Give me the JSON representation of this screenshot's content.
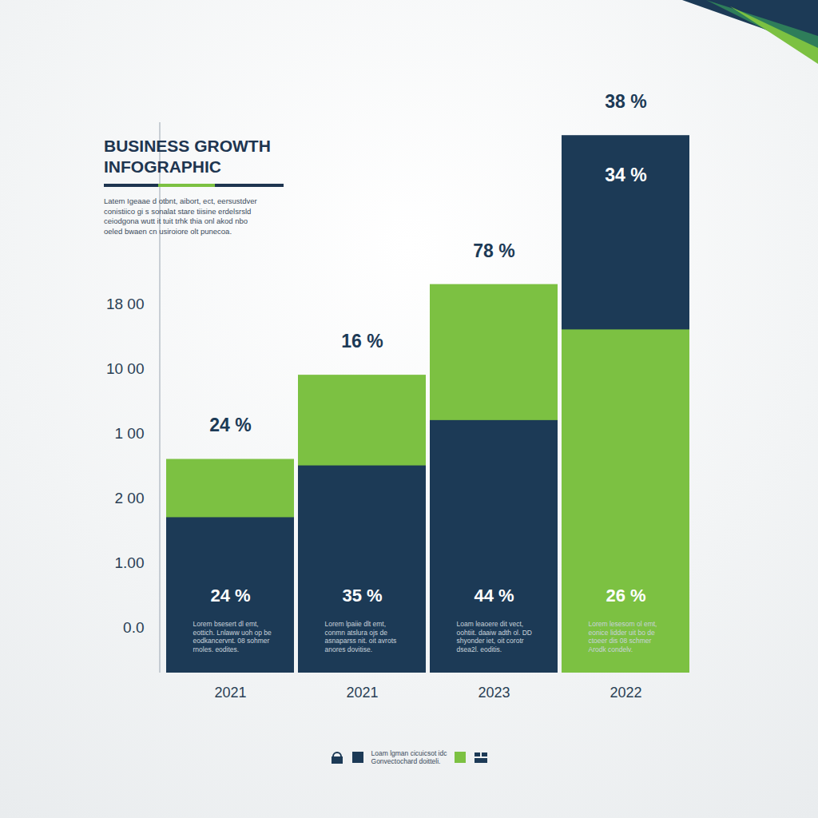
{
  "chart_data": {
    "type": "bar",
    "title": "BUSINESS GROWTH INFOGRAPHIC",
    "description": [
      "Latem Igeaae d otbnt, aibort, ect, eersustdver",
      "conistiico gi s sonalat stare tiisine erdelsrsld",
      "ceiodgona wutt it tuit trhk thia onl akod nbo",
      "oeled bwaen cn usiroiore olt punecoa."
    ],
    "categories": [
      "2021",
      "2021",
      "2023",
      "2022"
    ],
    "series": [
      {
        "color": "#1c3a56",
        "values": [
          1.7,
          2.5,
          3.2,
          7.6
        ]
      },
      {
        "color": "#7cc142",
        "values": [
          2.6,
          3.9,
          5.3,
          4.6
        ]
      }
    ],
    "ylim": [
      -0.7,
      7.8
    ],
    "yticks": [
      {
        "value": 0,
        "label": "0.0"
      },
      {
        "value": 1,
        "label": "1.00"
      },
      {
        "value": 2,
        "label": "2 00"
      },
      {
        "value": 3,
        "label": "1 00"
      },
      {
        "value": 4,
        "label": "10 00"
      },
      {
        "value": 5,
        "label": "18 00"
      }
    ],
    "top_labels": [
      "24 %",
      "16 %",
      "78 %",
      "38 %"
    ],
    "inner_labels": [
      null,
      null,
      null,
      "34 %"
    ],
    "bottom_labels": [
      "24 %",
      "35 %",
      "44 %",
      "26 %"
    ],
    "captions": [
      [
        "Lorem bsesert dl emt,",
        "eottich. Lnlaww uoh op be",
        "eodkancervnt. 08 sohmer",
        "rnoles. eodites."
      ],
      [
        "Lorem lpaiie dlt emt,",
        "conmn atslura ojs de",
        "asnaparss nit. oit avrots",
        "anores dovitise."
      ],
      [
        "Loam leaoere dit vect,",
        "oohtiit. daaiw adth ol. DD",
        "shyonder iet, oit corotr",
        "dsea2l. eoditis."
      ],
      [
        "Lorem lesesom ol emt,",
        "eonice lidder uit bo de",
        "ctoeer dis 08 schmer",
        "Arodk condelv."
      ]
    ],
    "legend": "bottom",
    "legend_text": [
      "Loam lgman cicuicsot idc",
      "Gonvectochard doitteli."
    ]
  }
}
